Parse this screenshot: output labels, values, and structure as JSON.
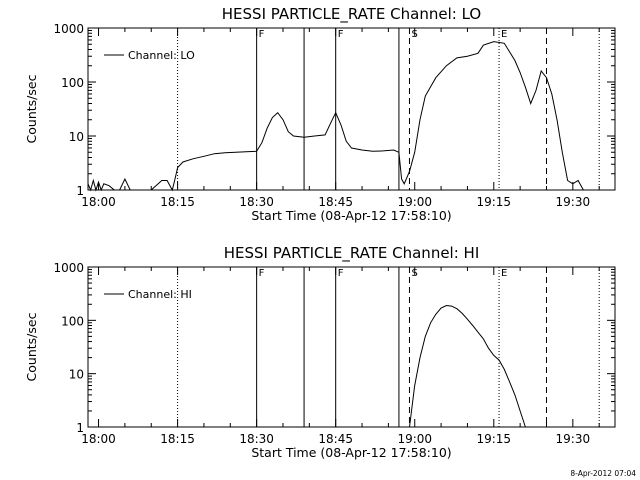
{
  "footer": "8-Apr-2012 07:04",
  "chart_data": [
    {
      "type": "line",
      "title": "HESSI PARTICLE_RATE Channel: LO",
      "xlabel": "Start Time (08-Apr-12 17:58:10)",
      "ylabel": "Counts/sec",
      "y_scale": "log",
      "ylim": [
        1,
        1000
      ],
      "xlim": [
        "17:58",
        "19:38"
      ],
      "x_ticks": [
        "18:00",
        "18:15",
        "18:30",
        "18:45",
        "19:00",
        "19:15",
        "19:30"
      ],
      "y_ticks": [
        "1",
        "10",
        "100",
        "1000"
      ],
      "legend": {
        "position": "top-left",
        "entries": [
          "Channel: LO"
        ]
      },
      "grid": false,
      "markers": [
        {
          "time": "18:15",
          "style": "dotted",
          "label": ""
        },
        {
          "time": "18:30",
          "style": "solid",
          "label": "F"
        },
        {
          "time": "18:39",
          "style": "solid",
          "label": ""
        },
        {
          "time": "18:45",
          "style": "solid",
          "label": "F"
        },
        {
          "time": "18:57",
          "style": "solid",
          "label": ""
        },
        {
          "time": "18:59",
          "style": "dashed",
          "label": "S"
        },
        {
          "time": "19:16",
          "style": "dotted",
          "label": "E"
        },
        {
          "time": "19:25",
          "style": "dashed",
          "label": ""
        },
        {
          "time": "19:35",
          "style": "dotted",
          "label": ""
        }
      ],
      "series": [
        {
          "name": "Channel: LO",
          "points": [
            [
              "17:58",
              1.3
            ],
            [
              "17:58:30",
              1
            ],
            [
              "17:59",
              1.5
            ],
            [
              "17:59:30",
              1
            ],
            [
              "18:00",
              1.4
            ],
            [
              "18:00:30",
              1
            ],
            [
              "18:01",
              1.3
            ],
            [
              "18:02",
              1.2
            ],
            [
              "18:03",
              1
            ],
            [
              "18:04",
              1
            ],
            [
              "18:05",
              1.6
            ],
            [
              "18:06",
              1
            ],
            [
              "18:07",
              1
            ],
            [
              "18:10",
              1
            ],
            [
              "18:12",
              1.5
            ],
            [
              "18:13",
              1.5
            ],
            [
              "18:14",
              1
            ],
            [
              "18:14:30",
              1.6
            ],
            [
              "18:15",
              2.6
            ],
            [
              "18:16",
              3.3
            ],
            [
              "18:18",
              3.8
            ],
            [
              "18:20",
              4.2
            ],
            [
              "18:22",
              4.7
            ],
            [
              "18:24",
              4.9
            ],
            [
              "18:26",
              5.0
            ],
            [
              "18:28",
              5.1
            ],
            [
              "18:30",
              5.2
            ],
            [
              "18:31",
              7.5
            ],
            [
              "18:32",
              14
            ],
            [
              "18:33",
              22
            ],
            [
              "18:34",
              27
            ],
            [
              "18:35",
              20
            ],
            [
              "18:36",
              12
            ],
            [
              "18:37",
              10
            ],
            [
              "18:39",
              9.5
            ],
            [
              "18:41",
              10
            ],
            [
              "18:43",
              10.5
            ],
            [
              "18:44",
              17
            ],
            [
              "18:45",
              27
            ],
            [
              "18:46",
              16
            ],
            [
              "18:47",
              8
            ],
            [
              "18:48",
              6
            ],
            [
              "18:50",
              5.5
            ],
            [
              "18:52",
              5.2
            ],
            [
              "18:54",
              5.3
            ],
            [
              "18:56",
              5.5
            ],
            [
              "18:57",
              5.0
            ],
            [
              "18:57:30",
              1.6
            ],
            [
              "18:58",
              1.3
            ],
            [
              "18:59",
              2.2
            ],
            [
              "19:00",
              5
            ],
            [
              "19:01",
              20
            ],
            [
              "19:02",
              55
            ],
            [
              "19:04",
              120
            ],
            [
              "19:06",
              200
            ],
            [
              "19:08",
              280
            ],
            [
              "19:10",
              300
            ],
            [
              "19:12",
              340
            ],
            [
              "19:13",
              480
            ],
            [
              "19:15",
              560
            ],
            [
              "19:17",
              520
            ],
            [
              "19:19",
              250
            ],
            [
              "19:20",
              150
            ],
            [
              "19:21",
              80
            ],
            [
              "19:22",
              40
            ],
            [
              "19:23",
              70
            ],
            [
              "19:24",
              160
            ],
            [
              "19:25",
              120
            ],
            [
              "19:26",
              60
            ],
            [
              "19:27",
              20
            ],
            [
              "19:28",
              5
            ],
            [
              "19:29",
              1.5
            ],
            [
              "19:30",
              1.3
            ],
            [
              "19:31",
              1.5
            ],
            [
              "19:32",
              1
            ],
            [
              "19:33",
              1
            ]
          ]
        }
      ]
    },
    {
      "type": "line",
      "title": "HESSI PARTICLE_RATE Channel: HI",
      "xlabel": "Start Time (08-Apr-12 17:58:10)",
      "ylabel": "Counts/sec",
      "y_scale": "log",
      "ylim": [
        1,
        1000
      ],
      "xlim": [
        "17:58",
        "19:38"
      ],
      "x_ticks": [
        "18:00",
        "18:15",
        "18:30",
        "18:45",
        "19:00",
        "19:15",
        "19:30"
      ],
      "y_ticks": [
        "1",
        "10",
        "100",
        "1000"
      ],
      "legend": {
        "position": "top-left",
        "entries": [
          "Channel: HI"
        ]
      },
      "grid": false,
      "markers": [
        {
          "time": "18:15",
          "style": "dotted",
          "label": ""
        },
        {
          "time": "18:30",
          "style": "solid",
          "label": "F"
        },
        {
          "time": "18:39",
          "style": "solid",
          "label": ""
        },
        {
          "time": "18:45",
          "style": "solid",
          "label": "F"
        },
        {
          "time": "18:57",
          "style": "solid",
          "label": ""
        },
        {
          "time": "18:59",
          "style": "dashed",
          "label": "S"
        },
        {
          "time": "19:16",
          "style": "dotted",
          "label": "E"
        },
        {
          "time": "19:25",
          "style": "dashed",
          "label": ""
        },
        {
          "time": "19:35",
          "style": "dotted",
          "label": ""
        }
      ],
      "series": [
        {
          "name": "Channel: HI",
          "points": [
            [
              "18:59",
              1
            ],
            [
              "19:00",
              6
            ],
            [
              "19:01",
              20
            ],
            [
              "19:02",
              50
            ],
            [
              "19:03",
              90
            ],
            [
              "19:04",
              130
            ],
            [
              "19:05",
              170
            ],
            [
              "19:06",
              190
            ],
            [
              "19:07",
              185
            ],
            [
              "19:08",
              165
            ],
            [
              "19:09",
              135
            ],
            [
              "19:10",
              105
            ],
            [
              "19:11",
              80
            ],
            [
              "19:12",
              60
            ],
            [
              "19:13",
              45
            ],
            [
              "19:14",
              30
            ],
            [
              "19:15",
              22
            ],
            [
              "19:16",
              18
            ],
            [
              "19:17",
              12
            ],
            [
              "19:18",
              7
            ],
            [
              "19:19",
              4
            ],
            [
              "19:20",
              2
            ],
            [
              "19:21",
              1
            ]
          ]
        }
      ]
    }
  ]
}
